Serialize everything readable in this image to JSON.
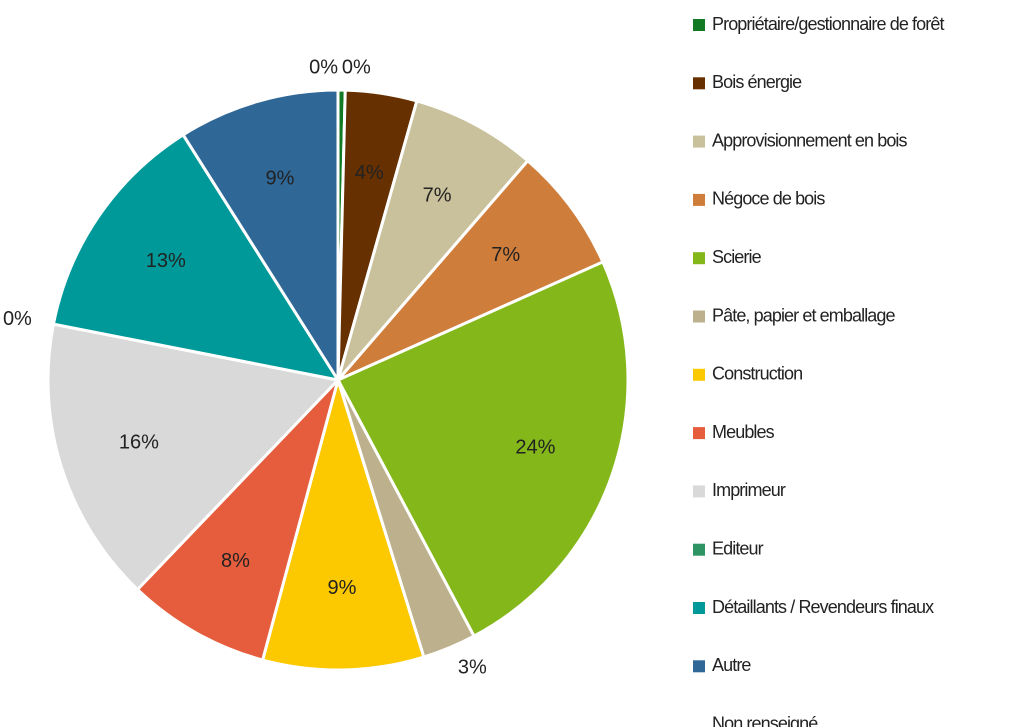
{
  "chart_data": {
    "type": "pie",
    "categories": [
      "Propriétaire/gestionnaire de forêt",
      "Bois énergie",
      "Approvisionnement en bois",
      "Négoce de bois",
      "Scierie",
      "Pâte, papier et emballage",
      "Construction",
      "Meubles",
      "Imprimeur",
      "Editeur",
      "Détaillants / Revendeurs finaux",
      "Autre",
      "Non renseigné"
    ],
    "values": [
      0.4,
      4,
      7,
      7,
      24,
      3,
      9,
      8,
      16,
      0,
      13,
      9,
      0
    ],
    "value_labels": [
      "0%",
      "4%",
      "7%",
      "7%",
      "24%",
      "3%",
      "9%",
      "8%",
      "16%",
      "0%",
      "13%",
      "9%",
      "0%"
    ],
    "colors": [
      "#127a22",
      "#663000",
      "#c9c19c",
      "#cf7d3b",
      "#84b71a",
      "#bdb08d",
      "#fcc800",
      "#e65d3d",
      "#d9d9d9",
      "#2e9464",
      "#009999",
      "#2f6797",
      "#ffffff"
    ],
    "legend": "right"
  }
}
